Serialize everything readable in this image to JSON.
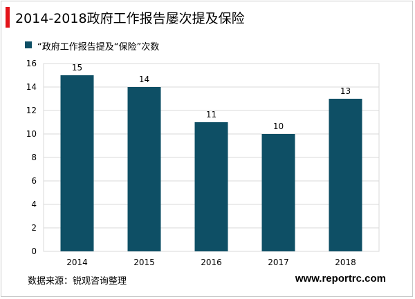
{
  "title": "2014-2018政府工作报告屡次提及保险",
  "source": "数据来源：锐观咨询整理",
  "website": "www.reportrc.com",
  "colors": {
    "bar": "#0e4f65",
    "accent": "#e3141a",
    "grid": "#d9d9d9"
  },
  "chart_data": {
    "type": "bar",
    "categories": [
      "2014",
      "2015",
      "2016",
      "2017",
      "2018"
    ],
    "series": [
      {
        "name": "“政府工作报告提及“保险”次数",
        "values": [
          15,
          14,
          11,
          10,
          13
        ]
      }
    ],
    "ylim": [
      0,
      16
    ],
    "yticks": [
      0,
      2,
      4,
      6,
      8,
      10,
      12,
      14,
      16
    ],
    "grid": true,
    "legend": "top-left",
    "data_labels": true
  }
}
